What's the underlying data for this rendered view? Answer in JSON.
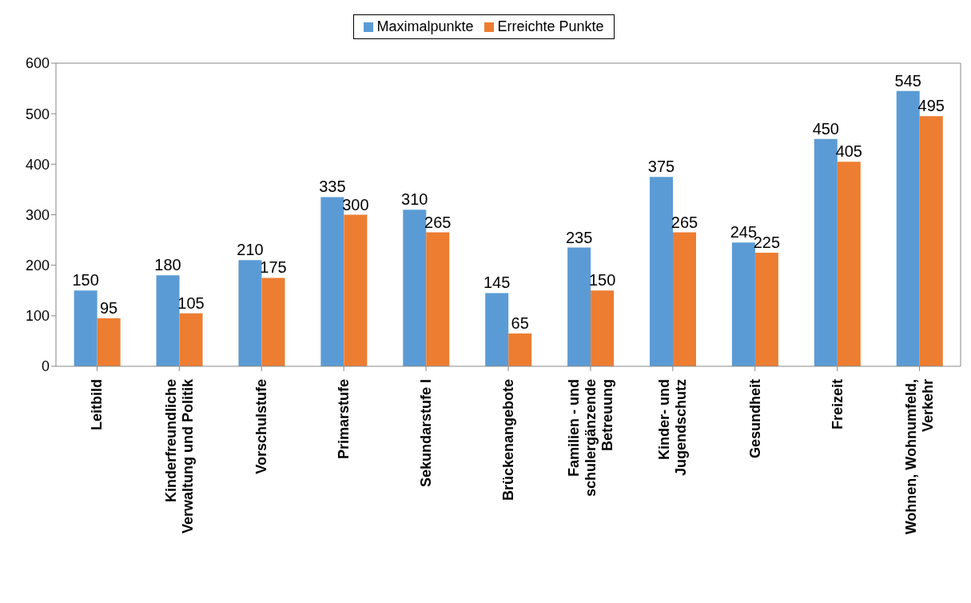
{
  "chart_data": {
    "type": "bar",
    "categories": [
      "Leitbild",
      "Kinderfreundliche Verwaltung und Politik",
      "Vorschulstufe",
      "Primarstufe",
      "Sekundarstufe I",
      "Brückenangebote",
      "Familien - und schulergänzende Betreuung",
      "Kinder- und Jugendschutz",
      "Gesundheit",
      "Freizeit",
      "Wohnen, Wohnumfeld, Verkehr"
    ],
    "series": [
      {
        "name": "Maximalpunkte",
        "color": "#5b9bd5",
        "values": [
          150,
          180,
          210,
          335,
          310,
          145,
          235,
          375,
          245,
          450,
          545
        ]
      },
      {
        "name": "Erreichte Punkte",
        "color": "#ed7d31",
        "values": [
          95,
          105,
          175,
          300,
          265,
          65,
          150,
          265,
          225,
          405,
          495
        ]
      }
    ],
    "ylim": [
      0,
      600
    ],
    "yticks": [
      0,
      100,
      200,
      300,
      400,
      500,
      600
    ],
    "grid": false,
    "legend": "top",
    "data_labels": true
  }
}
